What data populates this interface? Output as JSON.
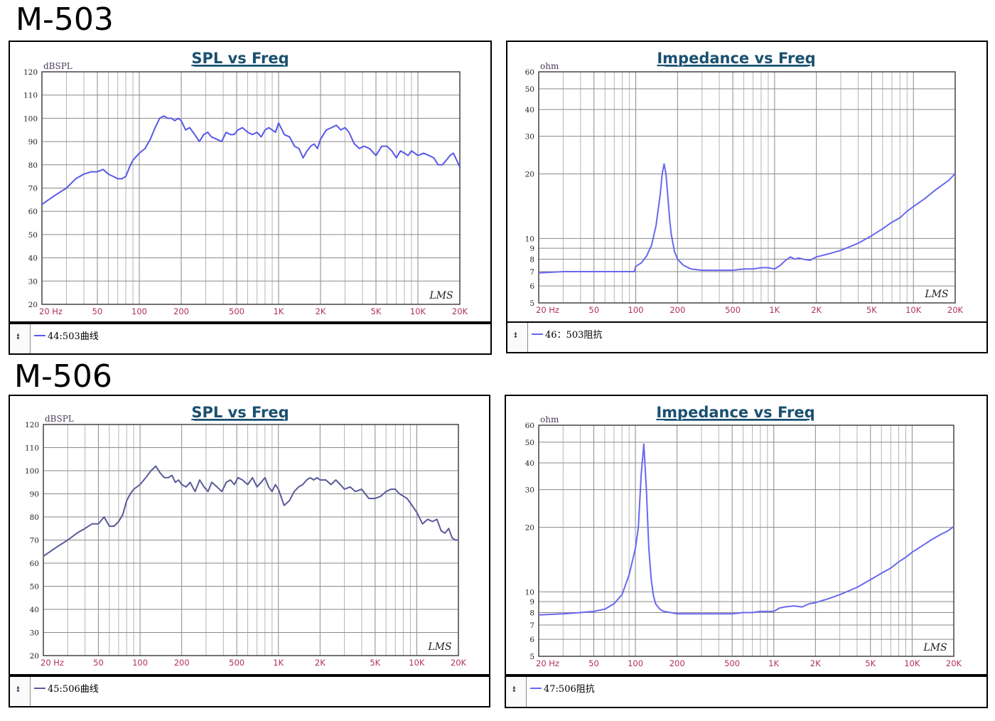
{
  "groups": [
    {
      "title": "M-503"
    },
    {
      "title": "M-506"
    }
  ],
  "colors": {
    "curve_spl": "#5858e8",
    "curve_imp": "#6868f0",
    "curve_spl_506": "#5a5a9a",
    "tick_label": "#b03060",
    "title": "#1a5070",
    "grid": "#b5b5b5"
  },
  "chart_data": [
    {
      "type": "line",
      "title": "SPL vs Freq",
      "ylabel": "dBSPL",
      "xscale": "log",
      "xlim": [
        20,
        20000
      ],
      "ylim": [
        20,
        120
      ],
      "xticks": [
        20,
        50,
        100,
        200,
        500,
        1000,
        2000,
        5000,
        10000,
        20000
      ],
      "xtick_labels": [
        "20 Hz",
        "50",
        "100",
        "200",
        "500",
        "1K",
        "2K",
        "5K",
        "10K",
        "20K"
      ],
      "yticks": [
        20,
        30,
        40,
        50,
        60,
        70,
        80,
        90,
        100,
        110,
        120
      ],
      "ytick_labels": [
        "20",
        "30",
        "40",
        "50",
        "60",
        "70",
        "80",
        "90",
        "100",
        "110",
        "120"
      ],
      "grid": true,
      "watermark": "LMS",
      "series": [
        {
          "name": "44:503曲线",
          "x": [
            20,
            25,
            30,
            35,
            40,
            45,
            50,
            55,
            60,
            65,
            70,
            75,
            80,
            85,
            90,
            100,
            110,
            120,
            130,
            140,
            150,
            160,
            170,
            180,
            190,
            200,
            215,
            230,
            250,
            270,
            290,
            310,
            330,
            360,
            390,
            420,
            450,
            480,
            510,
            550,
            600,
            650,
            700,
            750,
            800,
            850,
            900,
            950,
            1000,
            1100,
            1200,
            1300,
            1400,
            1500,
            1600,
            1700,
            1800,
            1900,
            2000,
            2200,
            2400,
            2600,
            2800,
            3000,
            3200,
            3500,
            3800,
            4100,
            4500,
            5000,
            5500,
            6000,
            6500,
            7000,
            7500,
            8000,
            8500,
            9000,
            9500,
            10000,
            11000,
            12000,
            13000,
            14000,
            15000,
            16000,
            17000,
            18000,
            20000
          ],
          "y": [
            63,
            67,
            70,
            74,
            76,
            77,
            77,
            78,
            76,
            75,
            74,
            74,
            75,
            79,
            82,
            85,
            87,
            91,
            96,
            100,
            101,
            100,
            100,
            99,
            100,
            99,
            95,
            96,
            93,
            90,
            93,
            94,
            92,
            91,
            90,
            94,
            93,
            93,
            95,
            96,
            94,
            93,
            94,
            92,
            95,
            96,
            95,
            94,
            98,
            93,
            92,
            88,
            87,
            83,
            86,
            88,
            89,
            87,
            91,
            95,
            96,
            97,
            95,
            96,
            94,
            89,
            87,
            88,
            87,
            84,
            88,
            88,
            86,
            83,
            86,
            85,
            84,
            86,
            85,
            84,
            85,
            84,
            83,
            80,
            80,
            82,
            84,
            85,
            79
          ]
        }
      ]
    },
    {
      "type": "line",
      "title": "Impedance vs Freq",
      "ylabel": "ohm",
      "xscale": "log",
      "yscale": "log",
      "xlim": [
        20,
        20000
      ],
      "ylim": [
        5,
        60
      ],
      "xticks": [
        20,
        50,
        100,
        200,
        500,
        1000,
        2000,
        5000,
        10000,
        20000
      ],
      "xtick_labels": [
        "20 Hz",
        "50",
        "100",
        "200",
        "500",
        "1K",
        "2K",
        "5K",
        "10K",
        "20K"
      ],
      "yticks": [
        5,
        6,
        7,
        8,
        9,
        10,
        20,
        30,
        40,
        50,
        60
      ],
      "ytick_labels": [
        "5",
        "6",
        "7",
        "8",
        "9",
        "10",
        "20",
        "30",
        "40",
        "50",
        "60"
      ],
      "grid": true,
      "watermark": "LMS",
      "series": [
        {
          "name": "46：503阻抗",
          "x": [
            20,
            30,
            40,
            50,
            60,
            70,
            80,
            90,
            98,
            100,
            110,
            120,
            130,
            140,
            150,
            155,
            160,
            165,
            170,
            175,
            180,
            190,
            200,
            220,
            250,
            300,
            400,
            500,
            600,
            700,
            800,
            900,
            1000,
            1100,
            1200,
            1300,
            1400,
            1500,
            1600,
            1800,
            2000,
            2500,
            3000,
            4000,
            5000,
            6000,
            7000,
            8000,
            9000,
            10000,
            12000,
            14000,
            16000,
            18000,
            20000
          ],
          "y": [
            6.9,
            7.0,
            7.0,
            7.0,
            7.0,
            7.0,
            7.0,
            7.0,
            7.0,
            7.4,
            7.7,
            8.3,
            9.3,
            11.5,
            16,
            20,
            22.3,
            20,
            16,
            12.5,
            10.5,
            8.7,
            8.0,
            7.5,
            7.2,
            7.1,
            7.1,
            7.1,
            7.2,
            7.2,
            7.3,
            7.3,
            7.2,
            7.5,
            7.9,
            8.2,
            8.0,
            8.1,
            8.0,
            7.9,
            8.2,
            8.5,
            8.8,
            9.5,
            10.3,
            11.1,
            11.9,
            12.5,
            13.4,
            14.1,
            15.3,
            16.6,
            17.7,
            18.7,
            20.1
          ]
        }
      ]
    },
    {
      "type": "line",
      "title": "SPL vs Freq",
      "ylabel": "dBSPL",
      "xscale": "log",
      "xlim": [
        20,
        20000
      ],
      "ylim": [
        20,
        120
      ],
      "xticks": [
        20,
        50,
        100,
        200,
        500,
        1000,
        2000,
        5000,
        10000,
        20000
      ],
      "xtick_labels": [
        "20 Hz",
        "50",
        "100",
        "200",
        "500",
        "1K",
        "2K",
        "5K",
        "10K",
        "20K"
      ],
      "yticks": [
        20,
        30,
        40,
        50,
        60,
        70,
        80,
        90,
        100,
        110,
        120
      ],
      "ytick_labels": [
        "20",
        "30",
        "40",
        "50",
        "60",
        "70",
        "80",
        "90",
        "100",
        "110",
        "120"
      ],
      "grid": true,
      "watermark": "LMS",
      "series": [
        {
          "name": "45:506曲线",
          "x": [
            20,
            25,
            30,
            35,
            40,
            45,
            50,
            55,
            60,
            65,
            70,
            75,
            80,
            85,
            90,
            100,
            110,
            120,
            130,
            140,
            150,
            160,
            170,
            180,
            190,
            200,
            215,
            230,
            250,
            270,
            290,
            310,
            330,
            360,
            390,
            420,
            450,
            480,
            510,
            550,
            600,
            650,
            700,
            750,
            800,
            850,
            900,
            950,
            1000,
            1100,
            1200,
            1300,
            1400,
            1500,
            1600,
            1700,
            1800,
            1900,
            2000,
            2200,
            2400,
            2600,
            2800,
            3000,
            3300,
            3600,
            4000,
            4500,
            5000,
            5500,
            6000,
            6500,
            7000,
            7500,
            8000,
            8500,
            9000,
            10000,
            11000,
            12000,
            13000,
            14000,
            15000,
            16000,
            17000,
            18000,
            19000,
            20000
          ],
          "y": [
            63,
            67,
            70,
            73,
            75,
            77,
            77,
            80,
            76,
            76,
            78,
            81,
            87,
            90,
            92,
            94,
            97,
            100,
            102,
            99,
            97,
            97,
            98,
            95,
            96,
            94,
            93,
            95,
            91,
            96,
            93,
            91,
            95,
            93,
            91,
            95,
            96,
            94,
            97,
            96,
            94,
            97,
            93,
            95,
            97,
            93,
            91,
            94,
            92,
            85,
            87,
            91,
            93,
            94,
            96,
            97,
            96,
            97,
            96,
            96,
            94,
            96,
            94,
            92,
            93,
            91,
            92,
            88,
            88,
            89,
            91,
            92,
            92,
            90,
            89,
            88,
            86,
            82,
            77,
            79,
            78,
            79,
            74,
            73,
            75,
            71,
            70,
            70
          ]
        }
      ]
    },
    {
      "type": "line",
      "title": "Impedance vs Freq",
      "ylabel": "ohm",
      "xscale": "log",
      "yscale": "log",
      "xlim": [
        20,
        20000
      ],
      "ylim": [
        5,
        60
      ],
      "xticks": [
        20,
        50,
        100,
        200,
        500,
        1000,
        2000,
        5000,
        10000,
        20000
      ],
      "xtick_labels": [
        "20 Hz",
        "50",
        "100",
        "200",
        "500",
        "1K",
        "2K",
        "5K",
        "10K",
        "20K"
      ],
      "yticks": [
        5,
        6,
        7,
        8,
        9,
        10,
        20,
        30,
        40,
        50,
        60
      ],
      "ytick_labels": [
        "5",
        "6",
        "7",
        "8",
        "9",
        "10",
        "20",
        "30",
        "40",
        "50",
        "60"
      ],
      "grid": true,
      "watermark": "LMS",
      "series": [
        {
          "name": "47:506阻抗",
          "x": [
            20,
            30,
            40,
            50,
            60,
            70,
            80,
            90,
            100,
            105,
            110,
            115,
            120,
            125,
            130,
            135,
            140,
            150,
            160,
            180,
            200,
            250,
            300,
            400,
            500,
            600,
            700,
            800,
            900,
            1000,
            1100,
            1200,
            1400,
            1600,
            1800,
            2000,
            2500,
            3000,
            4000,
            5000,
            6000,
            7000,
            8000,
            9000,
            10000,
            12000,
            14000,
            16000,
            18000,
            20000
          ],
          "y": [
            7.8,
            7.9,
            8.0,
            8.1,
            8.3,
            8.8,
            9.7,
            12,
            16,
            20,
            35,
            49,
            30,
            16,
            11.5,
            9.6,
            8.8,
            8.3,
            8.1,
            8.0,
            7.9,
            7.9,
            7.9,
            7.9,
            7.9,
            8.0,
            8.0,
            8.1,
            8.1,
            8.1,
            8.4,
            8.5,
            8.6,
            8.5,
            8.8,
            8.9,
            9.3,
            9.7,
            10.5,
            11.4,
            12.2,
            12.9,
            13.8,
            14.5,
            15.3,
            16.5,
            17.6,
            18.5,
            19.2,
            20.2
          ]
        }
      ]
    }
  ]
}
